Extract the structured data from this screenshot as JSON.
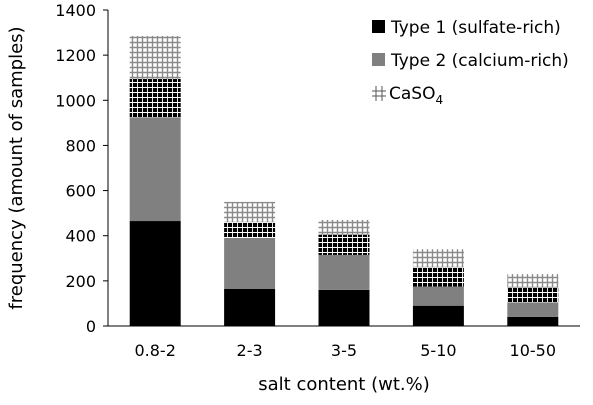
{
  "chart_data": {
    "type": "bar",
    "stacked": true,
    "categories": [
      "0.8-2",
      "2-3",
      "3-5",
      "5-10",
      "10-50"
    ],
    "series": [
      {
        "name": "Type 1 (sulfate-rich)",
        "values": [
          465,
          165,
          160,
          90,
          40
        ],
        "color": "#000000",
        "pattern": "solid"
      },
      {
        "name": "Type 2 (calcium-rich)",
        "values": [
          460,
          225,
          155,
          85,
          65
        ],
        "color": "#808080",
        "pattern": "solid"
      },
      {
        "name": "CaSO",
        "name_subscript": "4",
        "values": [
          170,
          70,
          90,
          85,
          65
        ],
        "color": "#000000",
        "pattern": "black-grid"
      },
      {
        "name": "",
        "values": [
          190,
          90,
          65,
          80,
          60
        ],
        "color": "#b0b0b0",
        "pattern": "gray-grid"
      }
    ],
    "xlabel": "salt content (wt.%)",
    "ylabel": "frequency (amount of samples)",
    "ylim": [
      0,
      1400
    ],
    "yticks": [
      "0",
      "200",
      "400",
      "600",
      "800",
      "1000",
      "1200",
      "1400"
    ],
    "grid": false,
    "legend_position": "top-right"
  }
}
